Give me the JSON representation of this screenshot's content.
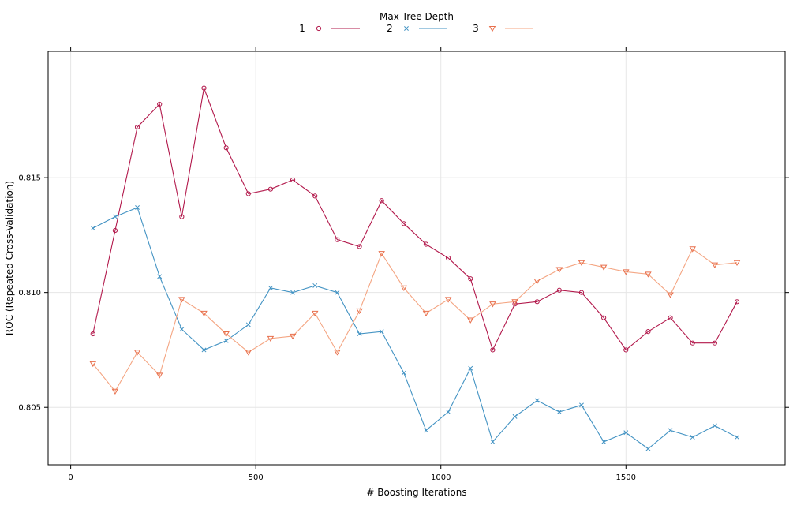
{
  "chart_data": {
    "type": "line",
    "xlabel": "# Boosting Iterations",
    "ylabel": "ROC (Repeated Cross-Validation)",
    "legend_title": "Max Tree Depth",
    "legend_position": "top",
    "grid": true,
    "xlim": [
      -61,
      1930
    ],
    "ylim": [
      0.8025,
      0.8205
    ],
    "xticks": [
      0,
      500,
      1000,
      1500
    ],
    "yticks": [
      0.805,
      0.81,
      0.815
    ],
    "ytick_labels": [
      "0.805",
      "0.810",
      "0.815"
    ],
    "x": [
      60,
      120,
      180,
      240,
      300,
      360,
      420,
      480,
      540,
      600,
      660,
      720,
      780,
      840,
      900,
      960,
      1020,
      1080,
      1140,
      1200,
      1260,
      1320,
      1380,
      1440,
      1500,
      1560,
      1620,
      1680,
      1740,
      1800
    ],
    "series": [
      {
        "name": "1",
        "color": "#B2184B",
        "marker": "circle",
        "values": [
          0.8082,
          0.8127,
          0.8172,
          0.8182,
          0.8133,
          0.8189,
          0.8163,
          0.8143,
          0.8145,
          0.8149,
          0.8142,
          0.8123,
          0.812,
          0.814,
          0.813,
          0.8121,
          0.8115,
          0.8106,
          0.8075,
          0.8095,
          0.8096,
          0.8101,
          0.81,
          0.8089,
          0.8075,
          0.8083,
          0.8089,
          0.8078,
          0.8078,
          0.8096
        ]
      },
      {
        "name": "2",
        "color": "#4393C3",
        "marker": "cross",
        "values": [
          0.8128,
          0.8133,
          0.8137,
          0.8107,
          0.8084,
          0.8075,
          0.8079,
          0.8086,
          0.8102,
          0.81,
          0.8103,
          0.81,
          0.8082,
          0.8083,
          0.8065,
          0.804,
          0.8048,
          0.8067,
          0.8035,
          0.8046,
          0.8053,
          0.8048,
          0.8051,
          0.8035,
          0.8039,
          0.8032,
          0.804,
          0.8037,
          0.8042,
          0.8037
        ]
      },
      {
        "name": "3",
        "color": "#F4A582",
        "marker_color": "#E86F4C",
        "marker": "triangle-down",
        "values": [
          0.8069,
          0.8057,
          0.8074,
          0.8064,
          0.8097,
          0.8091,
          0.8082,
          0.8074,
          0.808,
          0.8081,
          0.8091,
          0.8074,
          0.8092,
          0.8117,
          0.8102,
          0.8091,
          0.8097,
          0.8088,
          0.8095,
          0.8096,
          0.8105,
          0.811,
          0.8113,
          0.8111,
          0.8109,
          0.8108,
          0.8099,
          0.8119,
          0.8112,
          0.8113
        ]
      }
    ]
  }
}
